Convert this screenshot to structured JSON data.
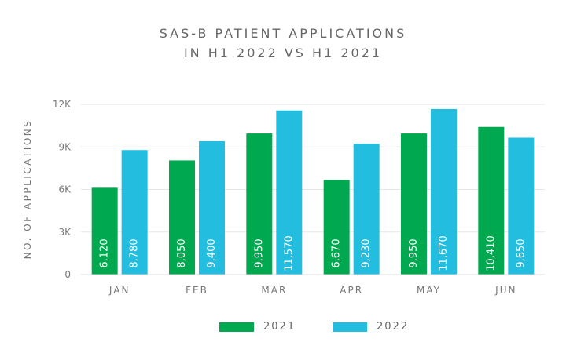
{
  "chart_data": {
    "type": "bar",
    "title": "SAS-B PATIENT APPLICATIONS",
    "subtitle": "IN H1 2022 VS H1 2021",
    "ylabel": "NO. OF APPLICATIONS",
    "xlabel": "",
    "categories": [
      "JAN",
      "FEB",
      "MAR",
      "APR",
      "MAY",
      "JUN"
    ],
    "ylim": [
      0,
      12000
    ],
    "yticks": [
      0,
      3000,
      6000,
      9000,
      12000
    ],
    "ytick_labels": [
      "0",
      "3K",
      "6K",
      "9K",
      "12K"
    ],
    "grid": true,
    "legend_position": "bottom",
    "series": [
      {
        "name": "2021",
        "color": "#00a94f",
        "values": [
          6120,
          8050,
          9950,
          6670,
          9950,
          10410
        ],
        "labels": [
          "6,120",
          "8,050",
          "9,950",
          "6,670",
          "9,950",
          "10,410"
        ]
      },
      {
        "name": "2022",
        "color": "#23bde0",
        "values": [
          8780,
          9400,
          11570,
          9230,
          11670,
          9650
        ],
        "labels": [
          "8,780",
          "9,400",
          "11,570",
          "9,230",
          "11,670",
          "9,650"
        ]
      }
    ]
  }
}
